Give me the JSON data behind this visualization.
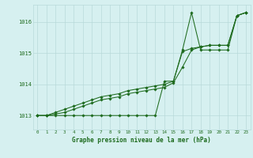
{
  "title": "Graphe pression niveau de la mer (hPa)",
  "background_color": "#d6f0f0",
  "grid_color": "#b8dada",
  "line_color": "#1e6b1e",
  "xlim": [
    -0.5,
    23.5
  ],
  "ylim": [
    1012.55,
    1016.55
  ],
  "yticks": [
    1013,
    1014,
    1015,
    1016
  ],
  "xticks": [
    0,
    1,
    2,
    3,
    4,
    5,
    6,
    7,
    8,
    9,
    10,
    11,
    12,
    13,
    14,
    15,
    16,
    17,
    18,
    19,
    20,
    21,
    22,
    23
  ],
  "series1": [
    1013.0,
    1013.0,
    1013.0,
    1013.0,
    1013.0,
    1013.0,
    1013.0,
    1013.0,
    1013.0,
    1013.0,
    1013.0,
    1013.0,
    1013.0,
    1013.0,
    1014.1,
    1014.1,
    1015.1,
    1016.3,
    1015.1,
    1015.1,
    1015.1,
    1015.1,
    1016.2,
    1016.3
  ],
  "series2": [
    1013.0,
    1013.0,
    1013.1,
    1013.2,
    1013.3,
    1013.4,
    1013.5,
    1013.6,
    1013.65,
    1013.7,
    1013.8,
    1013.85,
    1013.9,
    1013.95,
    1014.0,
    1014.1,
    1015.05,
    1015.15,
    1015.2,
    1015.25,
    1015.25,
    1015.25,
    1016.2,
    1016.3
  ],
  "series3": [
    1013.0,
    1013.0,
    1013.05,
    1013.1,
    1013.2,
    1013.3,
    1013.4,
    1013.5,
    1013.55,
    1013.6,
    1013.7,
    1013.75,
    1013.8,
    1013.85,
    1013.9,
    1014.05,
    1014.55,
    1015.1,
    1015.2,
    1015.25,
    1015.25,
    1015.25,
    1016.2,
    1016.3
  ]
}
